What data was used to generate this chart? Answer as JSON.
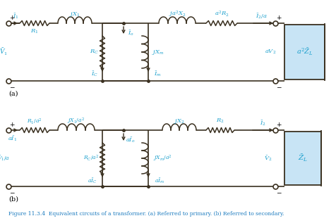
{
  "fig_width": 4.77,
  "fig_height": 3.17,
  "dpi": 100,
  "caption": "Figure 11.3.4  Equivalent circuits of a transformer. (a) Referred to primary. (b) Referred to secondary.",
  "caption_color": "#1a7abf",
  "bg_color": "#ffffff",
  "circuit_color": "#3a3020",
  "label_color": "#1a9fcc",
  "black": "#000000",
  "zl_fill": "#c8e4f5",
  "zl2_fill": "#c8e4f5"
}
